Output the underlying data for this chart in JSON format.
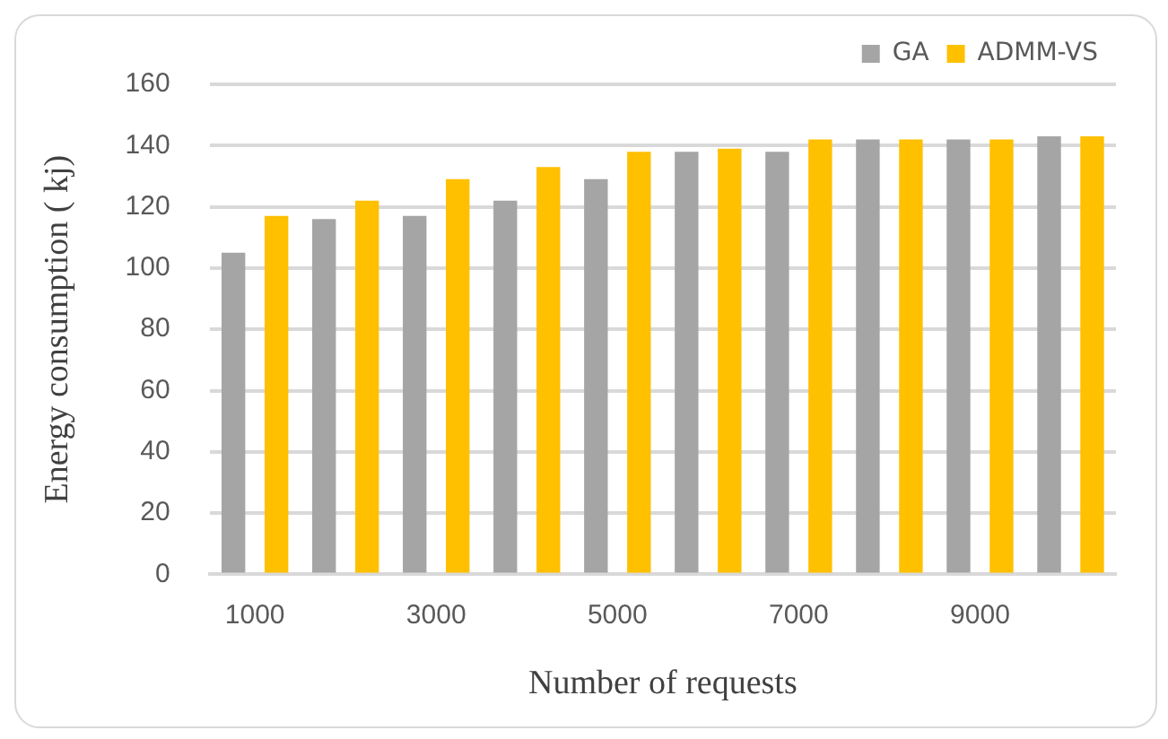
{
  "chart_data": {
    "type": "bar",
    "xlabel": "Number of requests",
    "ylabel": "Energy consumption ( kj)",
    "categories": [
      "1000",
      null,
      "3000",
      null,
      "5000",
      null,
      "7000",
      null,
      "9000",
      null
    ],
    "series": [
      {
        "name": "GA",
        "color": "#a5a5a5",
        "values": [
          105,
          116,
          117,
          122,
          129,
          138,
          138,
          142,
          142,
          143
        ]
      },
      {
        "name": "ADMM-VS",
        "color": "#ffc000",
        "values": [
          117,
          122,
          129,
          133,
          138,
          139,
          142,
          142,
          142,
          143
        ]
      }
    ],
    "ylim": [
      0,
      160
    ],
    "yticks": [
      0,
      20,
      40,
      60,
      80,
      100,
      120,
      140,
      160
    ],
    "grid": "y",
    "legend": "top right"
  }
}
